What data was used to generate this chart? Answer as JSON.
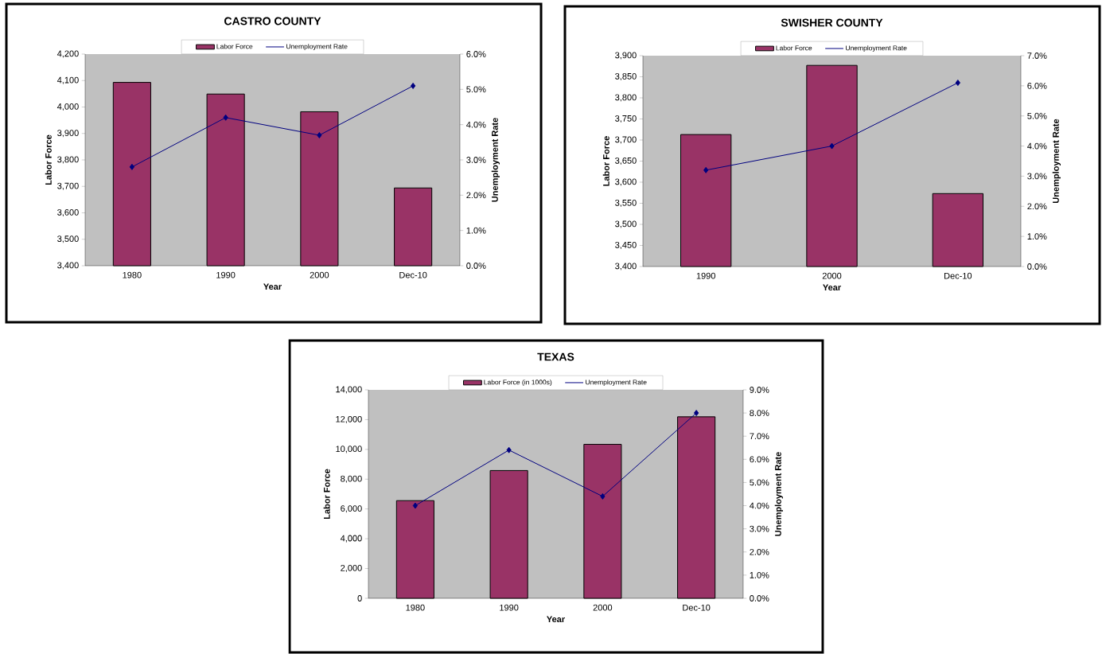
{
  "chart_data": [
    {
      "type": "bar",
      "title": "CASTRO COUNTY",
      "xlabel": "Year",
      "ylabel": "Labor Force",
      "y2label": "Unemployment Rate",
      "legend": "top",
      "marker": "diamond",
      "categories": [
        "1980",
        "1990",
        "2000",
        "Dec-10"
      ],
      "series": [
        {
          "name": "Labor Force",
          "color": "#993366",
          "values": [
            4093,
            4049,
            3982,
            3694
          ]
        },
        {
          "name": "Unemployment Rate",
          "type": "line",
          "axis": "y2",
          "color": "#000080",
          "values": [
            2.8,
            4.2,
            3.7,
            5.1
          ]
        }
      ],
      "ylim": [
        3400,
        4200
      ],
      "yticks": [
        {
          "value": 3400,
          "label": "3,400"
        },
        {
          "value": 3500,
          "label": "3,500"
        },
        {
          "value": 3600,
          "label": "3,600"
        },
        {
          "value": 3700,
          "label": "3,700"
        },
        {
          "value": 3800,
          "label": "3,800"
        },
        {
          "value": 3900,
          "label": "3,900"
        },
        {
          "value": 4000,
          "label": "4,000"
        },
        {
          "value": 4100,
          "label": "4,100"
        },
        {
          "value": 4200,
          "label": "4,200"
        }
      ],
      "y2lim": [
        0,
        6
      ],
      "y2ticks": [
        {
          "value": 0,
          "label": "0.0%"
        },
        {
          "value": 1,
          "label": "1.0%"
        },
        {
          "value": 2,
          "label": "2.0%"
        },
        {
          "value": 3,
          "label": "3.0%"
        },
        {
          "value": 4,
          "label": "4.0%"
        },
        {
          "value": 5,
          "label": "5.0%"
        },
        {
          "value": 6,
          "label": "6.0%"
        }
      ]
    },
    {
      "type": "bar",
      "title": "SWISHER COUNTY",
      "xlabel": "Year",
      "ylabel": "Labor Force",
      "y2label": "Unemployment Rate",
      "legend": "top",
      "marker": "diamond",
      "categories": [
        "1990",
        "2000",
        "Dec-10"
      ],
      "series": [
        {
          "name": "Labor Force",
          "color": "#993366",
          "values": [
            3713,
            3877,
            3573
          ]
        },
        {
          "name": "Unemployment Rate",
          "type": "line",
          "axis": "y2",
          "color": "#000080",
          "values": [
            3.2,
            4.0,
            6.1
          ]
        }
      ],
      "ylim": [
        3400,
        3900
      ],
      "yticks": [
        {
          "value": 3400,
          "label": "3,400"
        },
        {
          "value": 3450,
          "label": "3,450"
        },
        {
          "value": 3500,
          "label": "3,500"
        },
        {
          "value": 3550,
          "label": "3,550"
        },
        {
          "value": 3600,
          "label": "3,600"
        },
        {
          "value": 3650,
          "label": "3,650"
        },
        {
          "value": 3700,
          "label": "3,700"
        },
        {
          "value": 3750,
          "label": "3,750"
        },
        {
          "value": 3800,
          "label": "3,800"
        },
        {
          "value": 3850,
          "label": "3,850"
        },
        {
          "value": 3900,
          "label": "3,900"
        }
      ],
      "y2lim": [
        0,
        7
      ],
      "y2ticks": [
        {
          "value": 0,
          "label": "0.0%"
        },
        {
          "value": 1,
          "label": "1.0%"
        },
        {
          "value": 2,
          "label": "2.0%"
        },
        {
          "value": 3,
          "label": "3.0%"
        },
        {
          "value": 4,
          "label": "4.0%"
        },
        {
          "value": 5,
          "label": "5.0%"
        },
        {
          "value": 6,
          "label": "6.0%"
        },
        {
          "value": 7,
          "label": "7.0%"
        }
      ]
    },
    {
      "type": "bar",
      "title": "TEXAS",
      "xlabel": "Year",
      "ylabel": "Labor Force",
      "y2label": "Unemployment Rate",
      "legend": "top",
      "marker": "diamond",
      "categories": [
        "1980",
        "1990",
        "2000",
        "Dec-10"
      ],
      "series": [
        {
          "name": "Labor Force (in 1000s)",
          "color": "#993366",
          "values": [
            6560,
            8580,
            10340,
            12190
          ]
        },
        {
          "name": "Unemployment Rate",
          "type": "line",
          "axis": "y2",
          "color": "#000080",
          "values": [
            4.0,
            6.4,
            4.4,
            8.0
          ]
        }
      ],
      "ylim": [
        0,
        14000
      ],
      "yticks": [
        0,
        {
          "value": 2000,
          "label": "2,000"
        },
        {
          "value": 4000,
          "label": "4,000"
        },
        {
          "value": 6000,
          "label": "6,000"
        },
        {
          "value": 8000,
          "label": "8,000"
        },
        {
          "value": 10000,
          "label": "10,000"
        },
        {
          "value": 12000,
          "label": "12,000"
        },
        {
          "value": 14000,
          "label": "14,000"
        }
      ],
      "y2lim": [
        0,
        9
      ],
      "y2ticks": [
        {
          "value": 0,
          "label": "0.0%"
        },
        {
          "value": 1,
          "label": "1.0%"
        },
        {
          "value": 2,
          "label": "2.0%"
        },
        {
          "value": 3,
          "label": "3.0%"
        },
        {
          "value": 4,
          "label": "4.0%"
        },
        {
          "value": 5,
          "label": "5.0%"
        },
        {
          "value": 6,
          "label": "6.0%"
        },
        {
          "value": 7,
          "label": "7.0%"
        },
        {
          "value": 8,
          "label": "8.0%"
        },
        {
          "value": 9,
          "label": "9.0%"
        }
      ]
    }
  ]
}
